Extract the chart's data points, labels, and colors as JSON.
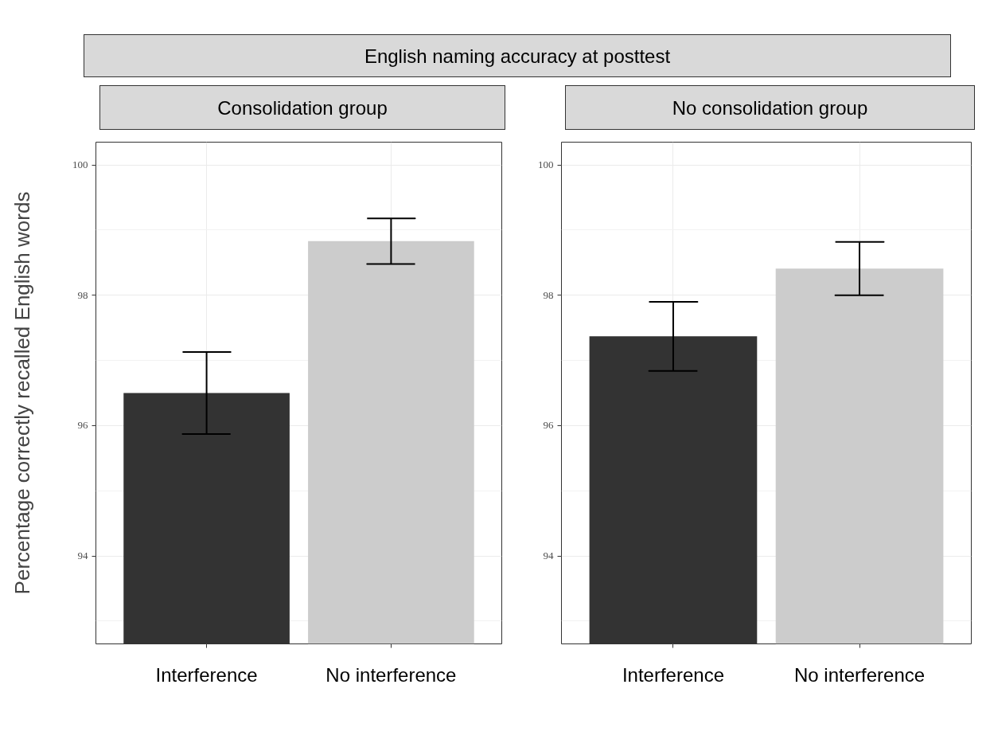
{
  "chart_data": [
    {
      "type": "bar",
      "title": "English naming accuracy at posttest",
      "subtitle": "Consolidation group",
      "ylabel": "Percentage correctly recalled English words",
      "categories": [
        "Interference",
        "No interference"
      ],
      "values": [
        96.5,
        98.83
      ],
      "colors": [
        "#333333",
        "#cccccc"
      ],
      "errors": [
        0.63,
        0.35
      ],
      "ylim": [
        92.65,
        100.35
      ],
      "yticks": [
        94,
        96,
        98,
        100
      ],
      "grid": true
    },
    {
      "type": "bar",
      "subtitle": "No consolidation group",
      "categories": [
        "Interference",
        "No interference"
      ],
      "values": [
        97.37,
        98.41
      ],
      "colors": [
        "#333333",
        "#cccccc"
      ],
      "errors": [
        0.53,
        0.41
      ],
      "ylim": [
        92.65,
        100.35
      ],
      "yticks": [
        94,
        96,
        98,
        100
      ],
      "grid": true
    }
  ]
}
